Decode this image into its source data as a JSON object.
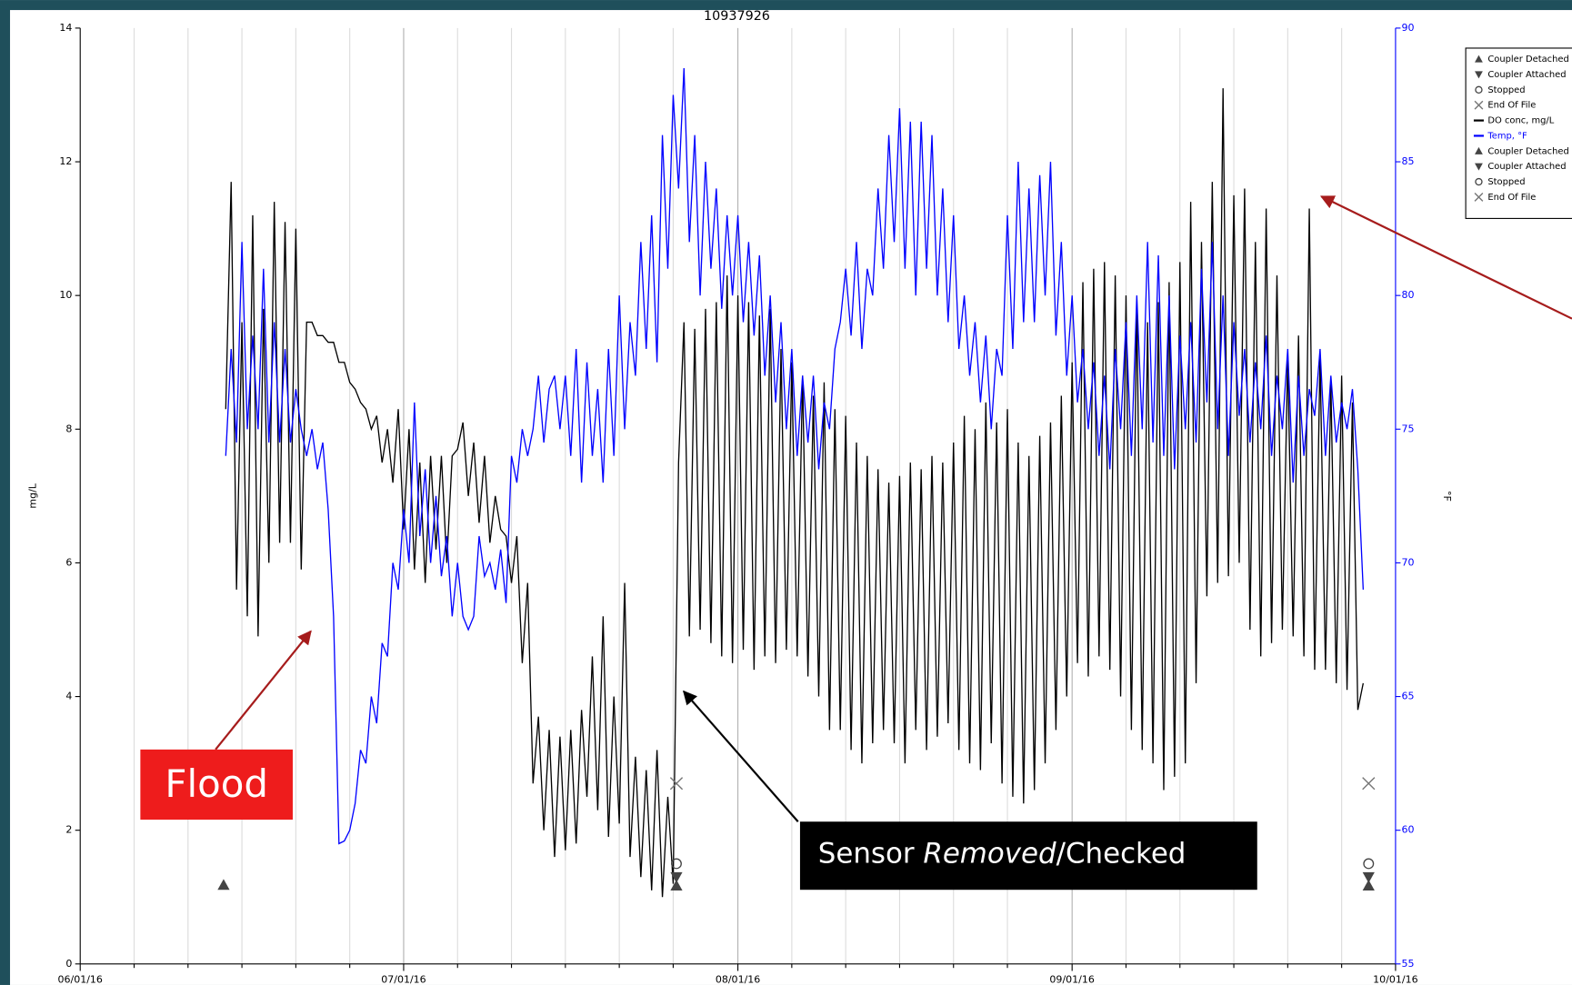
{
  "chart_data": {
    "type": "line",
    "title": "10937926",
    "ylabel": "mg/L",
    "y2label": "°F",
    "xlim": [
      0,
      122
    ],
    "xticks": [
      {
        "value": 0,
        "label": "06/01/16"
      },
      {
        "value": 30,
        "label": "07/01/16"
      },
      {
        "value": 61,
        "label": "08/01/16"
      },
      {
        "value": 92,
        "label": "09/01/16"
      },
      {
        "value": 122,
        "label": "10/01/16"
      }
    ],
    "x_grid": [
      5,
      10,
      15,
      20,
      25,
      35,
      40,
      45,
      50,
      55,
      66,
      71,
      76,
      81,
      86,
      97,
      102,
      107,
      112,
      117
    ],
    "ylim": [
      0,
      14
    ],
    "yticks": [
      0,
      2,
      4,
      6,
      8,
      10,
      12,
      14
    ],
    "y2lim": [
      55,
      90
    ],
    "y2ticks": [
      55,
      60,
      65,
      70,
      75,
      80,
      85,
      90
    ],
    "grid": true,
    "x": [
      13.5,
      14,
      14.5,
      15,
      15.5,
      16,
      16.5,
      17,
      17.5,
      18,
      18.5,
      19,
      19.5,
      20,
      20.5,
      21,
      21.5,
      22,
      22.5,
      23,
      23.5,
      24,
      24.5,
      25,
      25.5,
      26,
      26.5,
      27,
      27.5,
      28,
      28.5,
      29,
      29.5,
      30,
      30.5,
      31,
      31.5,
      32,
      32.5,
      33,
      33.5,
      34,
      34.5,
      35,
      35.5,
      36,
      36.5,
      37,
      37.5,
      38,
      38.5,
      39,
      39.5,
      40,
      40.5,
      41,
      41.5,
      42,
      42.5,
      43,
      43.5,
      44,
      44.5,
      45,
      45.5,
      46,
      46.5,
      47,
      47.5,
      48,
      48.5,
      49,
      49.5,
      50,
      50.5,
      51,
      51.5,
      52,
      52.5,
      53,
      53.5,
      54,
      54.5,
      55,
      55.5,
      56,
      56.5,
      57,
      57.5,
      58,
      58.5,
      59,
      59.5,
      60,
      60.5,
      61,
      61.5,
      62,
      62.5,
      63,
      63.5,
      64,
      64.5,
      65,
      65.5,
      66,
      66.5,
      67,
      67.5,
      68,
      68.5,
      69,
      69.5,
      70,
      70.5,
      71,
      71.5,
      72,
      72.5,
      73,
      73.5,
      74,
      74.5,
      75,
      75.5,
      76,
      76.5,
      77,
      77.5,
      78,
      78.5,
      79,
      79.5,
      80,
      80.5,
      81,
      81.5,
      82,
      82.5,
      83,
      83.5,
      84,
      84.5,
      85,
      85.5,
      86,
      86.5,
      87,
      87.5,
      88,
      88.5,
      89,
      89.5,
      90,
      90.5,
      91,
      91.5,
      92,
      92.5,
      93,
      93.5,
      94,
      94.5,
      95,
      95.5,
      96,
      96.5,
      97,
      97.5,
      98,
      98.5,
      99,
      99.5,
      100,
      100.5,
      101,
      101.5,
      102,
      102.5,
      103,
      103.5,
      104,
      104.5,
      105,
      105.5,
      106,
      106.5,
      107,
      107.5,
      108,
      108.5,
      109,
      109.5,
      110,
      110.5,
      111,
      111.5,
      112,
      112.5,
      113,
      113.5,
      114,
      114.5,
      115,
      115.5,
      116,
      116.5,
      117,
      117.5,
      118,
      118.5,
      119
    ],
    "series": [
      {
        "name": "DO conc, mg/L",
        "color": "#000000",
        "values": [
          8.3,
          11.7,
          5.6,
          9.6,
          5.2,
          11.2,
          4.9,
          9.8,
          6.0,
          11.4,
          6.3,
          11.1,
          6.3,
          11.0,
          5.9,
          9.6,
          9.6,
          9.4,
          9.4,
          9.3,
          9.3,
          9.0,
          9.0,
          8.7,
          8.6,
          8.4,
          8.3,
          8.0,
          8.2,
          7.5,
          8.0,
          7.2,
          8.3,
          6.5,
          8.0,
          5.9,
          7.5,
          5.7,
          7.6,
          6.2,
          7.6,
          6.0,
          7.6,
          7.7,
          8.1,
          7.0,
          7.8,
          6.6,
          7.6,
          6.3,
          7.0,
          6.5,
          6.4,
          5.7,
          6.4,
          4.5,
          5.7,
          2.7,
          3.7,
          2.0,
          3.5,
          1.6,
          3.4,
          1.7,
          3.5,
          1.8,
          3.8,
          2.5,
          4.6,
          2.3,
          5.2,
          1.9,
          4.0,
          2.1,
          5.7,
          1.6,
          3.1,
          1.3,
          2.9,
          1.1,
          3.2,
          1.0,
          2.5,
          1.2,
          7.5,
          9.6,
          4.9,
          9.5,
          5.0,
          9.8,
          4.8,
          9.9,
          4.6,
          10.3,
          4.5,
          10.0,
          4.7,
          9.9,
          4.4,
          9.7,
          4.6,
          9.8,
          4.5,
          9.2,
          4.7,
          9.0,
          4.6,
          8.8,
          4.3,
          8.5,
          4.0,
          8.7,
          3.5,
          8.3,
          3.5,
          8.2,
          3.2,
          7.8,
          3.0,
          7.6,
          3.3,
          7.4,
          3.5,
          7.2,
          3.3,
          7.3,
          3.0,
          7.5,
          3.5,
          7.4,
          3.2,
          7.6,
          3.4,
          7.5,
          3.6,
          7.8,
          3.2,
          8.2,
          3.0,
          8.0,
          2.9,
          8.4,
          3.3,
          8.1,
          2.7,
          8.3,
          2.5,
          7.8,
          2.4,
          7.6,
          2.6,
          7.9,
          3.0,
          8.1,
          3.5,
          8.5,
          4.0,
          9.0,
          4.5,
          10.2,
          4.3,
          10.4,
          4.6,
          10.5,
          4.4,
          10.3,
          4.0,
          10.0,
          3.5,
          9.9,
          3.2,
          9.6,
          3.0,
          9.9,
          2.6,
          10.2,
          2.8,
          10.5,
          3.0,
          11.4,
          4.2,
          10.8,
          5.5,
          11.7,
          5.7,
          13.1,
          5.8,
          11.5,
          6.0,
          11.6,
          5.0,
          10.8,
          4.6,
          11.3,
          4.8,
          10.3,
          5.0,
          9.1,
          4.9,
          9.4,
          4.6,
          11.3,
          4.4,
          9.1,
          4.4,
          8.7,
          4.2,
          8.8,
          4.1,
          8.4,
          3.8,
          4.2
        ]
      },
      {
        "name": "Temp, °F",
        "color": "#0000ff",
        "axis": "y2",
        "values": [
          74,
          78,
          74.5,
          82,
          75,
          78.5,
          75,
          81,
          74.5,
          79,
          74.5,
          78,
          74.5,
          76.5,
          75,
          74,
          75,
          73.5,
          74.5,
          72,
          68,
          59.5,
          59.6,
          60,
          61,
          63,
          62.5,
          65,
          64,
          67,
          66.5,
          70,
          69,
          72,
          70,
          76,
          71,
          73.5,
          70,
          72.5,
          69.5,
          71,
          68,
          70,
          68,
          67.5,
          68,
          71,
          69.5,
          70,
          69,
          70.5,
          68.5,
          74,
          73,
          75,
          74,
          75,
          77,
          74.5,
          76.5,
          77,
          75,
          77,
          74,
          78,
          73,
          77.5,
          74,
          76.5,
          73,
          78,
          74,
          80,
          75,
          79,
          77,
          82,
          78,
          83,
          77.5,
          86,
          81,
          87.5,
          84,
          88.5,
          82,
          86,
          80,
          85,
          81,
          84,
          79.5,
          83,
          80,
          83,
          79,
          82,
          78.5,
          81.5,
          77,
          80,
          76,
          79,
          75,
          78,
          74,
          77,
          74.5,
          77,
          73.5,
          76,
          75,
          78,
          79,
          81,
          78.5,
          82,
          78,
          81,
          80,
          84,
          81,
          86,
          82,
          87,
          81,
          86.5,
          80,
          86.5,
          81,
          86,
          80,
          84,
          79,
          83,
          78,
          80,
          77,
          79,
          76,
          78.5,
          75,
          78,
          77,
          83,
          78,
          85,
          79,
          84,
          79,
          84.5,
          80,
          85,
          78.5,
          82,
          77,
          80,
          76,
          78,
          75,
          77.5,
          74,
          77,
          73.5,
          78,
          75,
          79,
          74,
          80,
          75,
          82,
          74.5,
          81.5,
          74,
          80,
          73.5,
          78.5,
          75,
          79,
          74.5,
          81,
          76,
          82,
          75,
          80,
          74,
          79,
          75.5,
          78,
          74.5,
          77.5,
          75,
          78.5,
          74,
          77,
          75,
          78,
          73,
          77,
          74,
          76.5,
          75.5,
          78,
          74,
          77,
          74.5,
          76,
          75,
          76.5,
          73.5,
          69
        ]
      }
    ],
    "events": [
      {
        "symbol": "triangle-up",
        "x": 13.3,
        "value": 1.18
      },
      {
        "symbol": "x",
        "x": 55.3,
        "value": 2.7
      },
      {
        "symbol": "circle",
        "x": 55.3,
        "value": 1.5
      },
      {
        "symbol": "triangle-down",
        "x": 55.3,
        "value": 1.3
      },
      {
        "symbol": "triangle-up",
        "x": 55.3,
        "value": 1.17
      },
      {
        "symbol": "x",
        "x": 119.5,
        "value": 2.7
      },
      {
        "symbol": "circle",
        "x": 119.5,
        "value": 1.5
      },
      {
        "symbol": "triangle-down",
        "x": 119.5,
        "value": 1.3
      },
      {
        "symbol": "triangle-up",
        "x": 119.5,
        "value": 1.17
      }
    ],
    "legend_position": "upper right",
    "legend": [
      {
        "symbol": "triangle-up",
        "text": "Coupler Detached"
      },
      {
        "symbol": "triangle-down",
        "text": "Coupler Attached"
      },
      {
        "symbol": "circle",
        "text": "Stopped"
      },
      {
        "symbol": "x",
        "text": "End Of File"
      },
      {
        "symbol": "line",
        "color": "#000000",
        "text": "DO conc, mg/L"
      },
      {
        "symbol": "line",
        "color": "#0000ff",
        "text": "Temp, °F"
      },
      {
        "symbol": "triangle-up",
        "text": "Coupler Detached"
      },
      {
        "symbol": "triangle-down",
        "text": "Coupler Attached"
      },
      {
        "symbol": "circle",
        "text": "Stopped"
      },
      {
        "symbol": "x",
        "text": "End Of File"
      }
    ],
    "annotations": [
      {
        "text": "Flood"
      },
      {
        "text_parts": [
          "Sensor ",
          "Removed",
          "/Checked"
        ]
      }
    ]
  }
}
